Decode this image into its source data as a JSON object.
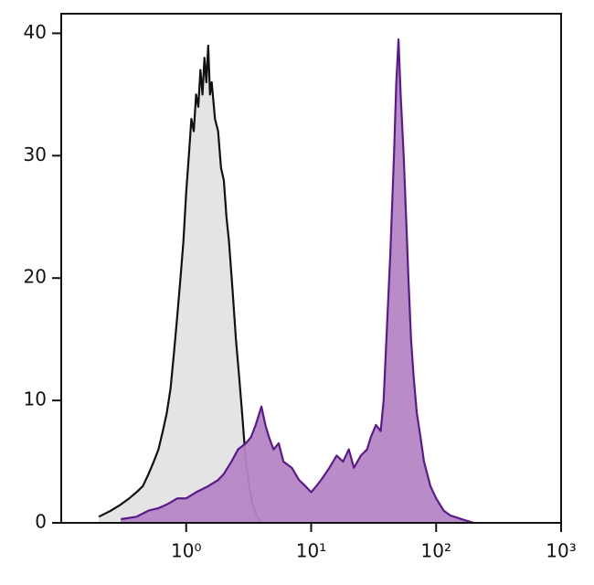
{
  "chart_data": {
    "type": "area",
    "log_x": true,
    "xlim": [
      0.1,
      1000
    ],
    "ylim": [
      0,
      41.6
    ],
    "xticks": [
      {
        "value": 1,
        "label": "10⁰"
      },
      {
        "value": 10,
        "label": "10¹"
      },
      {
        "value": 100,
        "label": "10²"
      },
      {
        "value": 1000,
        "label": "10³"
      }
    ],
    "yticks": [
      0,
      10,
      20,
      30,
      40
    ],
    "series": [
      {
        "color": "#111111",
        "fill": "#e3e3e3",
        "x": [
          0.2,
          0.25,
          0.3,
          0.35,
          0.4,
          0.45,
          0.5,
          0.55,
          0.6,
          0.65,
          0.7,
          0.75,
          0.8,
          0.85,
          0.9,
          0.95,
          1.0,
          1.05,
          1.1,
          1.15,
          1.2,
          1.25,
          1.3,
          1.35,
          1.4,
          1.45,
          1.5,
          1.55,
          1.6,
          1.7,
          1.8,
          1.9,
          2.0,
          2.1,
          2.2,
          2.35,
          2.5,
          2.65,
          2.8,
          3.0,
          3.2,
          3.4,
          3.7,
          4.0
        ],
        "values": [
          0.5,
          1,
          1.5,
          2,
          2.5,
          3,
          4,
          5,
          6,
          7.5,
          9,
          11,
          14,
          17,
          20,
          23,
          27,
          30,
          33,
          32,
          35,
          34,
          37,
          35,
          38,
          36,
          39,
          35,
          36,
          33,
          32,
          29,
          28,
          25,
          23,
          19,
          15,
          12,
          9,
          5,
          3,
          1.5,
          0.5,
          0
        ]
      },
      {
        "color": "#5b1a8c",
        "fill": "#b585c4",
        "x": [
          0.3,
          0.4,
          0.5,
          0.6,
          0.7,
          0.85,
          1.0,
          1.2,
          1.5,
          1.8,
          2.0,
          2.3,
          2.6,
          3.0,
          3.3,
          3.6,
          4.0,
          4.3,
          4.6,
          5.0,
          5.5,
          6.0,
          7.0,
          8.0,
          9.0,
          10,
          11,
          12,
          14,
          16,
          18,
          20,
          22,
          25,
          28,
          30,
          33,
          36,
          38,
          40,
          43,
          46,
          48,
          50,
          52,
          55,
          58,
          60,
          63,
          66,
          70,
          75,
          80,
          90,
          100,
          115,
          130,
          160,
          200
        ],
        "values": [
          0.3,
          0.5,
          1,
          1.2,
          1.5,
          2,
          2,
          2.5,
          3,
          3.5,
          4,
          5,
          6,
          6.5,
          7,
          8,
          9.5,
          8,
          7,
          6,
          6.5,
          5,
          4.5,
          3.5,
          3,
          2.5,
          3,
          3.5,
          4.5,
          5.5,
          5,
          6,
          4.5,
          5.5,
          6,
          7,
          8,
          7.5,
          10,
          15,
          22,
          30,
          36,
          39.5,
          35,
          30,
          24,
          20,
          15,
          12,
          9,
          7,
          5,
          3,
          2,
          1,
          0.6,
          0.3,
          0
        ]
      }
    ]
  }
}
